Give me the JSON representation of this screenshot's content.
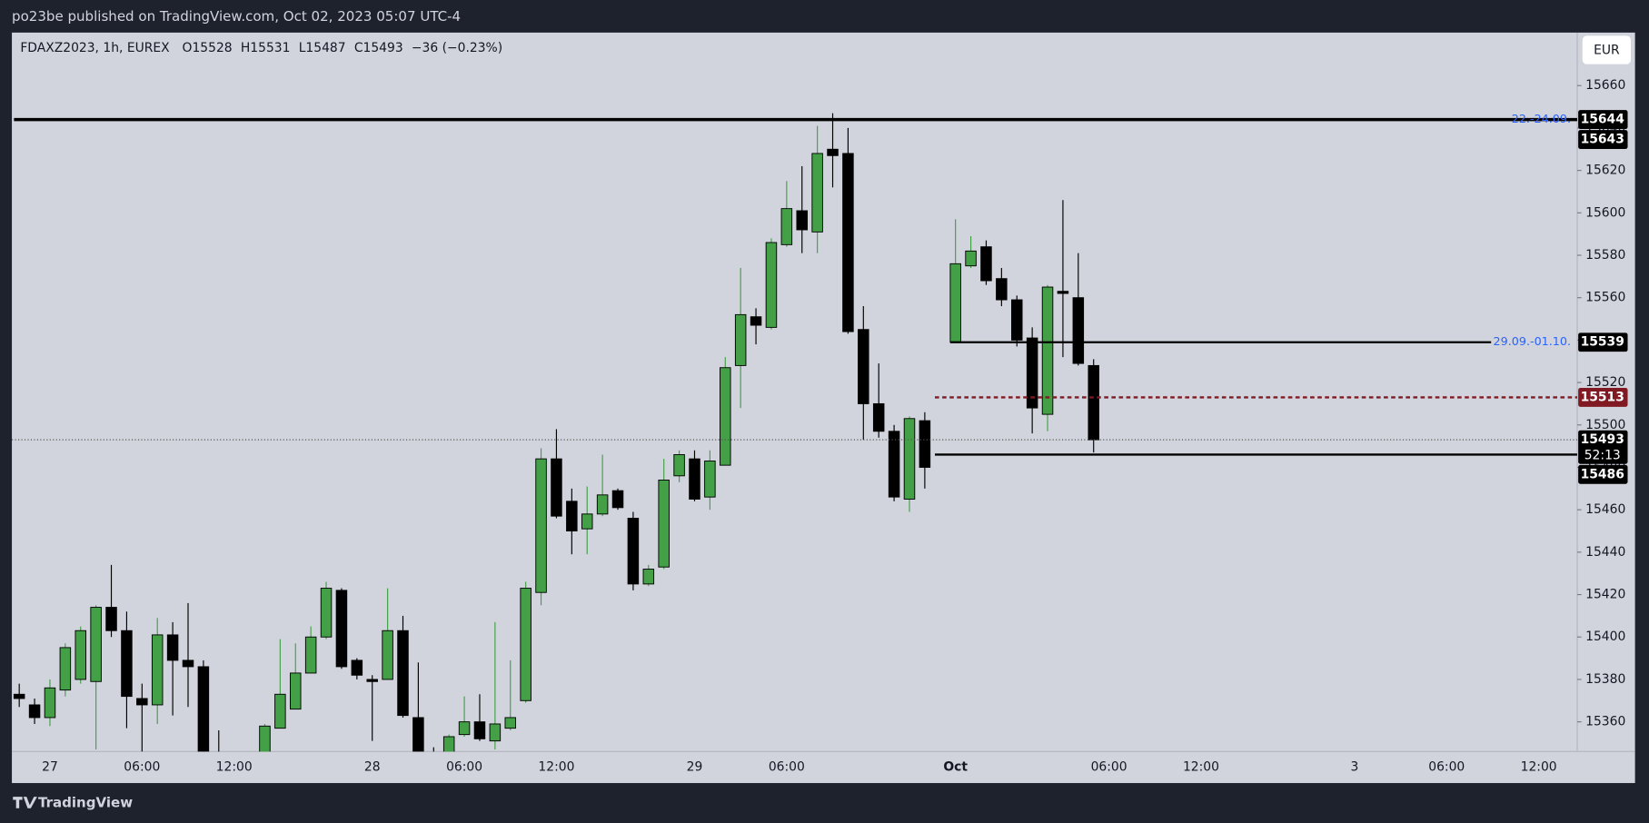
{
  "chart_data": {
    "type": "candlestick",
    "header": "po23be published on TradingView.com, Oct 02, 2023 05:07 UTC-4",
    "symbol": "FDAXZ2023, 1h, EUREX",
    "ohlc_text": [
      "O15528",
      "H15531",
      "L15487",
      "C15493",
      "−36 (−0.23%)"
    ],
    "currency": "EUR",
    "footer": "TradingView",
    "up_color": "#43a047",
    "down_color": "#000000",
    "categories": [
      null,
      null,
      "27",
      null,
      null,
      null,
      null,
      null,
      "06:00",
      null,
      null,
      null,
      null,
      null,
      "12:00",
      null,
      null,
      null,
      null,
      null,
      null,
      null,
      null,
      "28",
      null,
      null,
      null,
      null,
      null,
      "06:00",
      null,
      null,
      null,
      null,
      null,
      "12:00",
      null,
      null,
      null,
      null,
      null,
      null,
      null,
      null,
      "29",
      null,
      null,
      null,
      null,
      null,
      "06:00",
      null,
      null,
      null,
      null,
      null,
      null,
      null,
      null,
      null,
      null,
      "Oct",
      null,
      null,
      null,
      null,
      null,
      null,
      null,
      null,
      null,
      "06:00",
      null,
      null,
      null,
      null,
      null,
      "12:00",
      null,
      null,
      null,
      null,
      null,
      null,
      null,
      null,
      null,
      "3",
      null,
      null,
      null,
      null,
      null,
      "06:00",
      null,
      null,
      null,
      null,
      null,
      "12:00",
      null,
      null
    ],
    "open": [
      15373,
      15368,
      15362,
      15375,
      15380,
      15379,
      15414,
      15403,
      15371,
      15368,
      15401,
      15389,
      15386,
      15340,
      15338,
      15330,
      15340,
      15357,
      15366,
      15383,
      15400,
      15422,
      15389,
      15380,
      15380,
      15403,
      15362,
      15345,
      15340,
      15354,
      15360,
      15351,
      15357,
      15370,
      15421,
      15484,
      15464,
      15451,
      15458,
      15469,
      15456,
      15425,
      15433,
      15476,
      15484,
      15466,
      15481,
      15528,
      15551,
      15546,
      15585,
      15601,
      15591,
      15630,
      15628,
      15545,
      15510,
      15497,
      15465,
      15502,
      null,
      15539,
      15575,
      15584,
      15569,
      15559,
      15541,
      15505,
      15563,
      15560,
      15528,
      null,
      null,
      null,
      null,
      null,
      null,
      null,
      null,
      null,
      null,
      null,
      null,
      null,
      null,
      null,
      null,
      null,
      null,
      null,
      null,
      null,
      null,
      null,
      null,
      null,
      null,
      null,
      null,
      null,
      null,
      null
    ],
    "high": [
      15378,
      15371,
      15380,
      15397,
      15405,
      15415,
      15434,
      15412,
      15378,
      15409,
      15407,
      15416,
      15389,
      15356,
      15342,
      15340,
      15359,
      15399,
      15397,
      15405,
      15426,
      15423,
      15390,
      15382,
      15423,
      15410,
      15388,
      15348,
      15354,
      15372,
      15373,
      15407,
      15389,
      15426,
      15489,
      15498,
      15470,
      15471,
      15486,
      15470,
      15459,
      15434,
      15484,
      15488,
      15488,
      15488,
      15532,
      15574,
      15555,
      15588,
      15615,
      15622,
      15641,
      15647,
      15640,
      15556,
      15529,
      15500,
      15504,
      15506,
      null,
      15597,
      15589,
      15587,
      15574,
      15561,
      15546,
      15566,
      15606,
      15581,
      15531,
      null,
      null,
      null,
      null,
      null,
      null,
      null,
      null,
      null,
      null,
      null,
      null,
      null,
      null,
      null,
      null,
      null,
      null,
      null,
      null,
      null,
      null,
      null,
      null,
      null,
      null,
      null,
      null,
      null,
      null,
      null
    ],
    "low": [
      15367,
      15359,
      15358,
      15372,
      15378,
      15347,
      15400,
      15357,
      15346,
      15359,
      15363,
      15367,
      15343,
      15332,
      15325,
      15322,
      15335,
      15357,
      15366,
      15383,
      15399,
      15385,
      15380,
      15351,
      15380,
      15362,
      15340,
      15330,
      15336,
      15353,
      15351,
      15347,
      15356,
      15369,
      15415,
      15456,
      15439,
      15439,
      15457,
      15460,
      15422,
      15424,
      15432,
      15473,
      15464,
      15460,
      15481,
      15508,
      15538,
      15545,
      15584,
      15581,
      15581,
      15612,
      15543,
      15493,
      15494,
      15464,
      15459,
      15470,
      null,
      15539,
      15574,
      15566,
      15556,
      15537,
      15496,
      15497,
      15532,
      15528,
      15487,
      null,
      null,
      null,
      null,
      null,
      null,
      null,
      null,
      null,
      null,
      null,
      null,
      null,
      null,
      null,
      null,
      null,
      null,
      null,
      null,
      null,
      null,
      null,
      null,
      null,
      null,
      null,
      null,
      null,
      null,
      null
    ],
    "close": [
      15371,
      15362,
      15376,
      15395,
      15403,
      15414,
      15403,
      15372,
      15368,
      15401,
      15389,
      15386,
      15344,
      15338,
      15330,
      15335,
      15358,
      15373,
      15383,
      15400,
      15423,
      15386,
      15382,
      15379,
      15403,
      15363,
      15344,
      15338,
      15353,
      15360,
      15352,
      15359,
      15362,
      15423,
      15484,
      15457,
      15450,
      15458,
      15467,
      15461,
      15425,
      15432,
      15474,
      15486,
      15465,
      15483,
      15527,
      15552,
      15547,
      15586,
      15602,
      15592,
      15628,
      15627,
      15544,
      15510,
      15497,
      15466,
      15503,
      15480,
      null,
      15576,
      15582,
      15568,
      15559,
      15540,
      15508,
      15565,
      15562,
      15529,
      15493,
      null,
      null,
      null,
      null,
      null,
      null,
      null,
      null,
      null,
      null,
      null,
      null,
      null,
      null,
      null,
      null,
      null,
      null,
      null,
      null,
      null,
      null,
      null,
      null,
      null,
      null,
      null,
      null,
      null,
      null,
      null
    ],
    "ylim": [
      15346,
      15685
    ],
    "yticks": [
      15360,
      15380,
      15400,
      15420,
      15440,
      15460,
      15480,
      15500,
      15520,
      15540,
      15560,
      15580,
      15600,
      15620,
      15640,
      15660
    ],
    "levels": [
      {
        "value": 15644,
        "label": "22.-24.09.",
        "start": 0,
        "style": "solid",
        "color": "#000000"
      },
      {
        "value": 15539,
        "label": "29.09.-01.10.",
        "start": 61,
        "style": "solid",
        "color": "#000000"
      },
      {
        "value": 15513,
        "start": 60,
        "style": "dashed",
        "color": "#801922"
      },
      {
        "value": 15486,
        "start": 60,
        "style": "solid",
        "color": "#000000"
      }
    ],
    "price_tags": [
      15643
    ],
    "last_price": 15493,
    "countdown": "52:13"
  }
}
